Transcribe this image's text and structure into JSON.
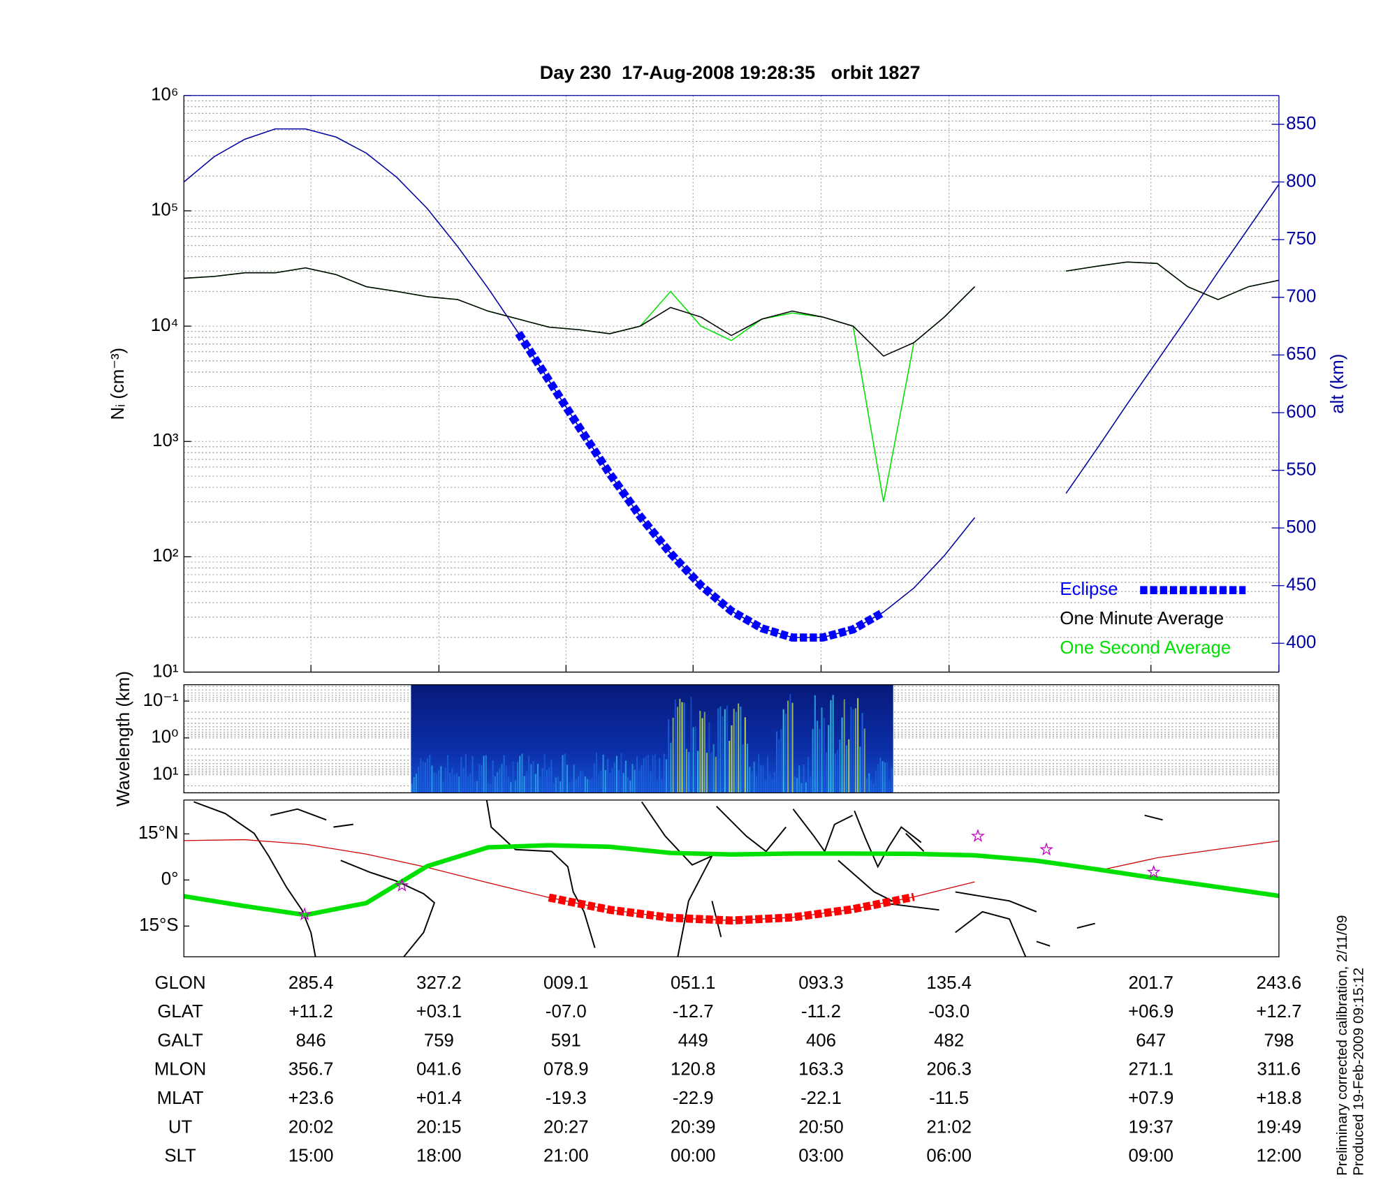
{
  "chart_data": [
    {
      "type": "line",
      "title": "Day 230  17-Aug-2008 19:28:35   orbit 1827",
      "ylabel": "Nᵢ (cm⁻³)",
      "y2label": "alt (km)",
      "yscale": "log",
      "ylim": [
        10,
        1000000
      ],
      "yticks": [
        {
          "value": 10,
          "label": "10¹"
        },
        {
          "value": 100,
          "label": "10²"
        },
        {
          "value": 1000,
          "label": "10³"
        },
        {
          "value": 10000,
          "label": "10⁴"
        },
        {
          "value": 100000,
          "label": "10⁵"
        },
        {
          "value": 1000000,
          "label": "10⁶"
        }
      ],
      "y2lim": [
        375,
        875
      ],
      "y2ticks": [
        400,
        450,
        500,
        550,
        600,
        650,
        700,
        750,
        800,
        850
      ],
      "grid": true,
      "legend": "lower right",
      "series": [
        {
          "name": "Eclipse",
          "color": "#0000ff",
          "axis": "y2",
          "marker": "square",
          "values": [
            null,
            null,
            null,
            null,
            null,
            null,
            null,
            null,
            null,
            null,
            null,
            669,
            628,
            587,
            547,
            510,
            478,
            450,
            428,
            413,
            405,
            405,
            412,
            427,
            null,
            null,
            null,
            null,
            null,
            null,
            null,
            null,
            null,
            null,
            null,
            null,
            null
          ]
        },
        {
          "name": "One Minute Average",
          "color": "#000000",
          "values": [
            26000,
            27000,
            29000,
            29000,
            32000,
            28000,
            22000,
            20000,
            18000,
            17000,
            13500,
            11500,
            9800,
            9300,
            8600,
            10000,
            14500,
            12000,
            8300,
            11500,
            13500,
            12000,
            10000,
            5500,
            7200,
            12000,
            22000,
            null,
            null,
            30000,
            33000,
            36000,
            35000,
            22000,
            17000,
            22000,
            25000
          ]
        },
        {
          "name": "One Second Average",
          "color": "#00e000",
          "values": [
            26000,
            27000,
            29000,
            29000,
            32000,
            28000,
            22000,
            20000,
            18000,
            17000,
            13500,
            11500,
            9800,
            9300,
            8600,
            10000,
            20000,
            10000,
            7500,
            11500,
            13000,
            12000,
            10000,
            300,
            7200,
            12000,
            22000,
            null,
            null,
            30000,
            33000,
            36000,
            35000,
            22000,
            17000,
            22000,
            25000
          ]
        },
        {
          "color": "#0000a0",
          "axis": "y2",
          "values": [
            800,
            822,
            837,
            846,
            846,
            839,
            825,
            804,
            777,
            744,
            708,
            669,
            628,
            587,
            547,
            510,
            478,
            450,
            428,
            413,
            405,
            405,
            412,
            427,
            448,
            476,
            509,
            null,
            null,
            530,
            568,
            607,
            645,
            683,
            722,
            760,
            798
          ]
        }
      ]
    },
    {
      "type": "heatmap",
      "ylabel": "Wavelength (km)",
      "yscale": "log",
      "y_reversed": true,
      "ylim": [
        0.036,
        31
      ],
      "yticks": [
        {
          "value": 0.1,
          "label": "10⁻¹"
        },
        {
          "value": 1,
          "label": "10⁰"
        },
        {
          "value": 10,
          "label": "10¹"
        }
      ]
    },
    {
      "type": "map",
      "ylim": [
        -25,
        26
      ],
      "yticks": [
        {
          "value": 15,
          "label": "15°N"
        },
        {
          "value": 0,
          "label": "0°"
        },
        {
          "value": -15,
          "label": "15°S"
        }
      ],
      "series": [
        {
          "color": "#cc0000",
          "values": [
            12.8,
            13.1,
            11.6,
            8.4,
            4.1,
            -0.9,
            -5.7,
            -9.7,
            -12.3,
            -13.2,
            -12.2,
            -9.5,
            -5.5,
            -0.6,
            null,
            2.9,
            7.2,
            10.0,
            12.7
          ]
        },
        {
          "color": "#00e000",
          "values": [
            -5.3,
            -8.5,
            -11.4,
            -7.5,
            4.5,
            10.6,
            11.3,
            10.8,
            8.8,
            8.3,
            8.6,
            8.6,
            8.5,
            8.0,
            6.3,
            3.5,
            0.5,
            -2.3,
            -5.2
          ]
        },
        {
          "color": "#ff0000",
          "marker": "square",
          "values": [
            null,
            null,
            null,
            null,
            null,
            null,
            -5.7,
            -9.7,
            -12.3,
            -13.2,
            -12.2,
            -9.5,
            -5.5,
            null,
            null,
            null,
            null,
            null,
            null
          ]
        }
      ]
    }
  ],
  "table": {
    "rows": [
      {
        "label": "GLON",
        "cells": [
          "285.4",
          "327.2",
          "009.1",
          "051.1",
          "093.3",
          "135.4",
          "201.7",
          "243.6"
        ]
      },
      {
        "label": "GLAT",
        "cells": [
          "+11.2",
          "+03.1",
          "-07.0",
          "-12.7",
          "-11.2",
          "-03.0",
          "+06.9",
          "+12.7"
        ]
      },
      {
        "label": "GALT",
        "cells": [
          "846",
          "759",
          "591",
          "449",
          "406",
          "482",
          "647",
          "798"
        ]
      },
      {
        "label": "MLON",
        "cells": [
          "356.7",
          "041.6",
          "078.9",
          "120.8",
          "163.3",
          "206.3",
          "271.1",
          "311.6"
        ]
      },
      {
        "label": "MLAT",
        "cells": [
          "+23.6",
          "+01.4",
          "-19.3",
          "-22.9",
          "-22.1",
          "-11.5",
          "+07.9",
          "+18.8"
        ]
      },
      {
        "label": "UT",
        "cells": [
          "20:02",
          "20:15",
          "20:27",
          "20:39",
          "20:50",
          "21:02",
          "19:37",
          "19:49"
        ]
      },
      {
        "label": "SLT",
        "cells": [
          "15:00",
          "18:00",
          "21:00",
          "00:00",
          "03:00",
          "06:00",
          "09:00",
          "12:00"
        ]
      }
    ]
  },
  "notes": [
    "Preliminary corrected calibration, 2/11/09",
    "Produced 19-Feb-2009 09:15:12"
  ]
}
